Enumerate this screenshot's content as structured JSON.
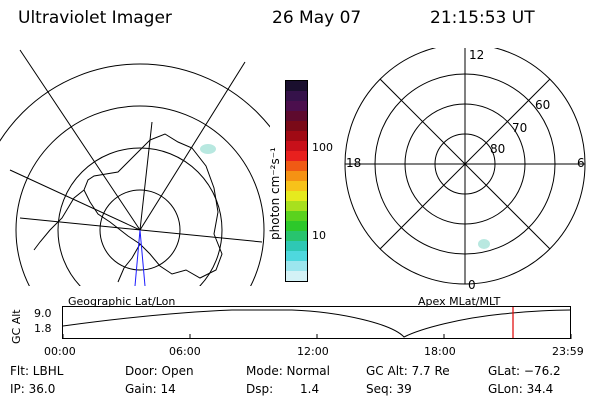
{
  "header": {
    "title": "Ultraviolet Imager",
    "date": "26 May 07",
    "time": "21:15:53 UT"
  },
  "colorbar": {
    "unit_label": "photon cm⁻²s⁻¹",
    "ticks": [
      "100",
      "10"
    ],
    "colors": [
      "#1a0f2e",
      "#35124a",
      "#4b0f4d",
      "#5e0a2e",
      "#7a0a18",
      "#a00a14",
      "#c8101a",
      "#e8201e",
      "#f05a14",
      "#f59214",
      "#f7c21a",
      "#e6ea1e",
      "#a8e01e",
      "#5ad21e",
      "#2cc82a",
      "#28c46e",
      "#2ec8b4",
      "#4ed8de",
      "#9ce6ee",
      "#d4f2f6"
    ]
  },
  "left_map": {
    "caption": "Geographic Lat/Lon",
    "blob_color": "#b8e8e0"
  },
  "right_map": {
    "caption": "Apex MLat/MLT",
    "mlt_labels": [
      "12",
      "18",
      "6",
      "0"
    ],
    "lat_labels": [
      "60",
      "70",
      "80"
    ],
    "blob_color": "#b8e8e0"
  },
  "timeline": {
    "y_axis_title": "GC Alt",
    "y_ticks": [
      "9.0",
      "1.8"
    ],
    "x_ticks": [
      "00:00",
      "06:00",
      "12:00",
      "18:00",
      "23:59"
    ],
    "marker_time_hours": 21.26,
    "marker_color": "#e00000"
  },
  "info": {
    "row1": {
      "filter": "Flt: LBHL",
      "door": "Door: Open",
      "mode": "Mode: Normal",
      "gc_alt": "GC Alt: 7.7 Re",
      "glat": "GLat: −76.2"
    },
    "row2": {
      "ip": "IP: 36.0",
      "gain": "Gain: 14",
      "dsp_label": "Dsp:",
      "dsp_value": "1.4",
      "seq": "Seq: 39",
      "glon": "GLon:  34.4"
    }
  }
}
